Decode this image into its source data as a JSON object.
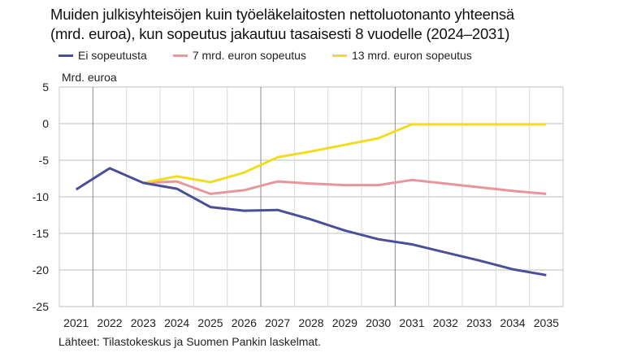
{
  "chart_data": {
    "type": "line",
    "title": "Muiden julkisyhteisöjen kuin työeläkelaitosten nettoluotonanto yhteensä (mrd. euroa), kun sopeutus jakautuu tasaisesti 8 vuodelle (2024–2031)",
    "title_lines": [
      "Muiden julkisyhteisöjen kuin työeläkelaitosten nettoluotonanto yhteensä",
      "(mrd. euroa), kun sopeutus jakautuu tasaisesti 8 vuodelle (2024–2031)"
    ],
    "xlabel": "",
    "ylabel": "Mrd. euroa",
    "ylim": [
      -25,
      5
    ],
    "yticks": [
      5,
      0,
      -5,
      -10,
      -15,
      -20,
      -25
    ],
    "ytick_labels": [
      "5",
      "0",
      "-5",
      "-10",
      "-15",
      "-20",
      "-25"
    ],
    "categories": [
      "2021",
      "2022",
      "2023",
      "2024",
      "2025",
      "2026",
      "2027",
      "2028",
      "2029",
      "2030",
      "2031",
      "2032",
      "2033",
      "2034",
      "2035"
    ],
    "grid": true,
    "legend_position": "top-left",
    "series": [
      {
        "name": "Ei sopeutusta",
        "color": "#4b4f9a",
        "values": [
          -9.0,
          -6.1,
          -8.1,
          -8.9,
          -11.4,
          -11.9,
          -11.8,
          -13.1,
          -14.6,
          -15.8,
          -16.5,
          -17.6,
          -18.7,
          -19.9,
          -20.7
        ]
      },
      {
        "name": "7 mrd. euron sopeutus",
        "color": "#e8959b",
        "values": [
          null,
          null,
          -8.1,
          -7.9,
          -9.6,
          -9.1,
          -7.9,
          -8.2,
          -8.4,
          -8.4,
          -7.7,
          -8.2,
          -8.7,
          -9.2,
          -9.6
        ]
      },
      {
        "name": "13 mrd. euron sopeutus",
        "color": "#f2dc1f",
        "values": [
          null,
          null,
          -8.1,
          -7.2,
          -8.0,
          -6.7,
          -4.6,
          -3.8,
          -2.9,
          -2.0,
          -0.1,
          -0.1,
          -0.1,
          -0.1,
          -0.1
        ]
      }
    ],
    "source": "Lähteet: Tilastokeskus ja Suomen Pankin laskelmat."
  }
}
